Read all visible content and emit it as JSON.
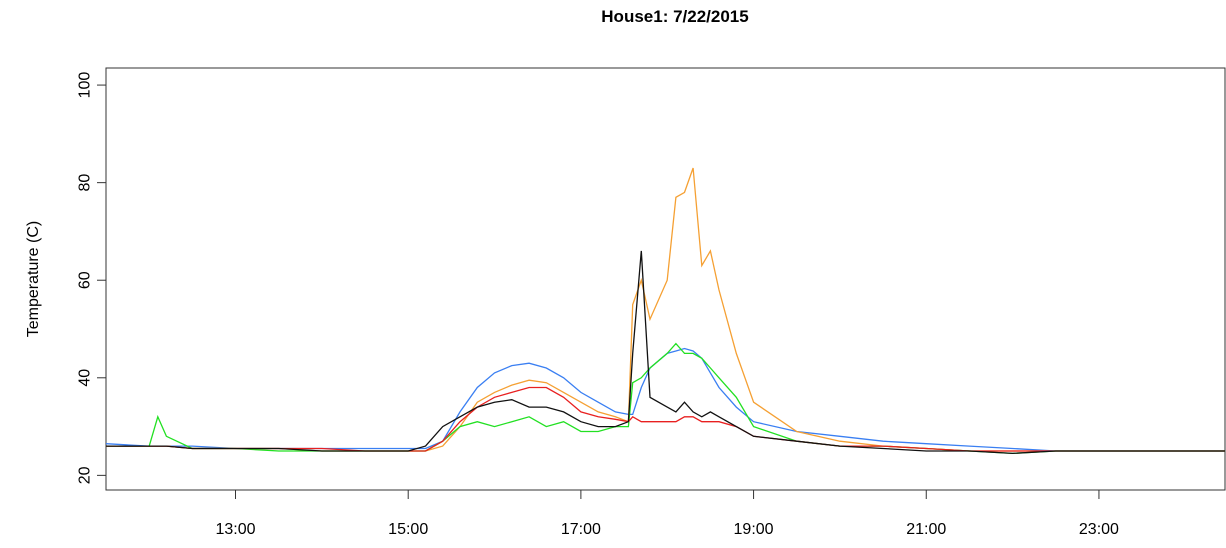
{
  "chart_data": {
    "type": "line",
    "title": "House1: 7/22/2015",
    "y_label": "Temperature (C)",
    "x": [
      11.5,
      12.0,
      12.1,
      12.2,
      12.5,
      13,
      13.5,
      14,
      14.5,
      15,
      15.2,
      15.4,
      15.6,
      15.8,
      16.0,
      16.2,
      16.4,
      16.6,
      16.8,
      17.0,
      17.2,
      17.4,
      17.55,
      17.6,
      17.7,
      17.8,
      18.0,
      18.1,
      18.2,
      18.3,
      18.4,
      18.5,
      18.6,
      18.8,
      19.0,
      19.5,
      20,
      20.5,
      21,
      21.5,
      22,
      22.5,
      23,
      23.5,
      24,
      24.46
    ],
    "series": [
      {
        "color": "#3a7ff2",
        "values": [
          26.5,
          26,
          26,
          26,
          26,
          25.5,
          25.5,
          25.5,
          25.5,
          25.5,
          25.5,
          27,
          33,
          38,
          41,
          42.5,
          43,
          42,
          40,
          37,
          35,
          33,
          32.5,
          32.5,
          38,
          42,
          45,
          45.5,
          46,
          45.5,
          44,
          41,
          38,
          34,
          31,
          29,
          28,
          27,
          26.5,
          26,
          25.5,
          25,
          25,
          25,
          25,
          25
        ]
      },
      {
        "color": "#f5a033",
        "values": [
          26,
          26,
          26,
          26,
          25.5,
          25.5,
          25.5,
          25,
          25,
          25,
          25,
          26,
          30,
          35,
          37,
          38.5,
          39.5,
          39,
          37,
          35,
          33,
          32,
          31,
          55,
          60,
          52,
          60,
          77,
          78,
          83,
          63,
          66,
          58,
          45,
          35,
          29,
          27,
          26,
          25.5,
          25,
          25,
          25,
          25,
          25,
          25,
          25
        ]
      },
      {
        "color": "#22e022",
        "values": [
          26,
          26,
          32,
          28,
          25.5,
          25.5,
          25,
          25,
          25,
          25,
          25,
          27,
          30,
          31,
          30,
          31,
          32,
          30,
          31,
          29,
          29,
          30,
          30,
          39,
          40,
          42,
          45,
          47,
          45,
          45,
          44,
          42,
          40,
          36,
          30,
          27,
          26,
          26,
          25.5,
          25,
          24.5,
          25,
          25,
          25,
          25,
          25
        ]
      },
      {
        "color": "#e82020",
        "values": [
          26,
          26,
          26,
          26,
          25.5,
          25.5,
          25.5,
          25.5,
          25,
          25,
          25,
          27,
          31,
          34,
          36,
          37,
          38,
          38,
          36,
          33,
          32,
          31.5,
          31,
          32,
          31,
          31,
          31,
          31,
          32,
          32,
          31,
          31,
          31,
          30,
          28,
          27,
          26,
          26,
          25.5,
          25,
          25,
          25,
          25,
          25,
          25,
          25
        ]
      },
      {
        "color": "#111111",
        "values": [
          26,
          26,
          26,
          26,
          25.5,
          25.5,
          25.5,
          25,
          25,
          25,
          26,
          30,
          32,
          34,
          35,
          35.5,
          34,
          34,
          33,
          31,
          30,
          30,
          31,
          45,
          66,
          36,
          34,
          33,
          35,
          33,
          32,
          33,
          32,
          30,
          28,
          27,
          26,
          25.5,
          25,
          25,
          24.5,
          25,
          25,
          25,
          25,
          25
        ]
      }
    ],
    "xlim": [
      11.5,
      24.46
    ],
    "xticks": [
      {
        "value": 13,
        "label": "13:00"
      },
      {
        "value": 15,
        "label": "15:00"
      },
      {
        "value": 17,
        "label": "17:00"
      },
      {
        "value": 19,
        "label": "19:00"
      },
      {
        "value": 21,
        "label": "21:00"
      },
      {
        "value": 23,
        "label": "23:00"
      }
    ],
    "ylim": [
      17,
      103.5
    ],
    "yticks": [
      20,
      40,
      60,
      80,
      100
    ]
  }
}
